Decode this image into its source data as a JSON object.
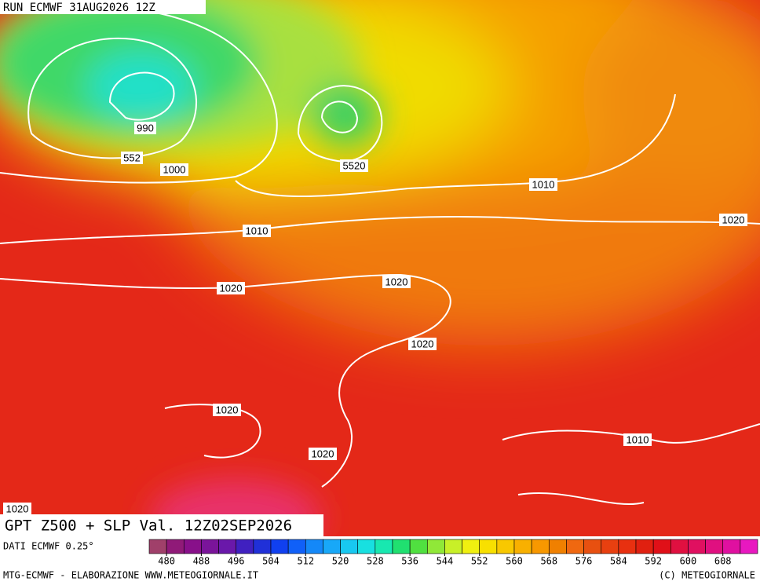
{
  "header": {
    "run": "RUN ECMWF 31AUG2026 12Z"
  },
  "map": {
    "title": "GPT Z500 + SLP Val. 12Z02SEP2026",
    "contour_labels": [
      "990",
      "552",
      "1000",
      "5520",
      "1010",
      "1020",
      "1010",
      "1020",
      "1020",
      "1020",
      "1020",
      "1020",
      "1010",
      "1020"
    ]
  },
  "colorbar": {
    "source": "DATI ECMWF 0.25°",
    "lim": [
      476,
      616
    ],
    "ticks": [
      480,
      488,
      496,
      504,
      512,
      520,
      528,
      536,
      544,
      552,
      560,
      568,
      576,
      584,
      592,
      600,
      608
    ],
    "colors": [
      "#a0406a",
      "#901a78",
      "#88108a",
      "#7a149a",
      "#6a18aa",
      "#4020c0",
      "#2030d8",
      "#1040f0",
      "#1060f8",
      "#1488f8",
      "#18a8f8",
      "#18c8f0",
      "#18e0e0",
      "#18e8b0",
      "#20e070",
      "#50e040",
      "#90e838",
      "#c8f028",
      "#f0f010",
      "#f8e000",
      "#f8c800",
      "#f8b000",
      "#f89800",
      "#f08000",
      "#f06810",
      "#e85010",
      "#e84010",
      "#e83010",
      "#e02010",
      "#e01018",
      "#e01040",
      "#e01060",
      "#e01080",
      "#e010a0",
      "#e818c0"
    ]
  },
  "footer": {
    "left": "MTG-ECMWF - ELABORAZIONE WWW.METEOGIORNALE.IT",
    "right": "(C) METEOGIORNALE"
  }
}
